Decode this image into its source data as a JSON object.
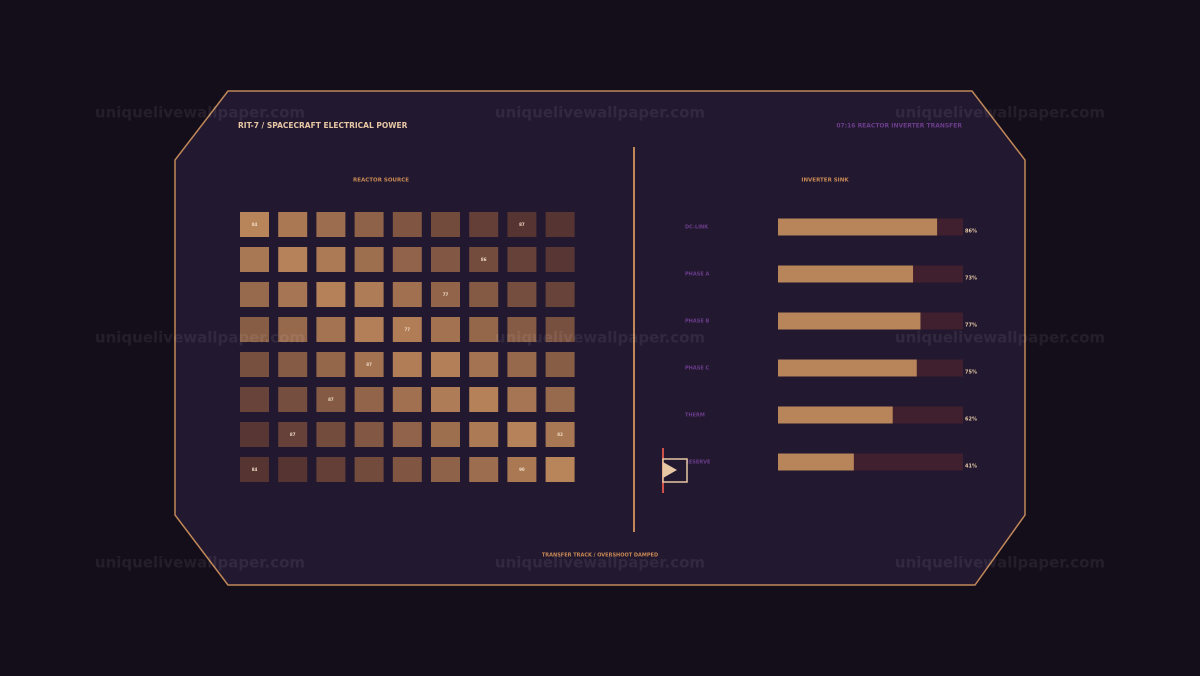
{
  "header": {
    "title": "RIT-7 / SPACECRAFT ELECTRICAL POWER",
    "status": "07:16 REACTOR INVERTER TRANSFER"
  },
  "watermark": "uniquelivewallpaper.com",
  "source": {
    "title": "REACTOR SOURCE",
    "cells": [
      [
        "84",
        null,
        null,
        null,
        null,
        null,
        null,
        "87",
        null
      ],
      [
        null,
        null,
        null,
        null,
        null,
        null,
        "86",
        null,
        null
      ],
      [
        null,
        null,
        null,
        null,
        null,
        "77",
        null,
        null,
        null
      ],
      [
        null,
        null,
        null,
        null,
        "77",
        null,
        null,
        null,
        null
      ],
      [
        null,
        null,
        null,
        "87",
        null,
        null,
        null,
        null,
        null
      ],
      [
        null,
        null,
        "87",
        null,
        null,
        null,
        null,
        null,
        null
      ],
      [
        null,
        "87",
        null,
        null,
        null,
        null,
        null,
        null,
        "82"
      ],
      [
        "84",
        null,
        null,
        null,
        null,
        null,
        null,
        "90",
        null
      ]
    ]
  },
  "sink": {
    "title": "INVERTER SINK",
    "xlim": [
      0,
      100
    ],
    "rows": [
      {
        "label": "DC-LINK",
        "value": 86,
        "value_label": "86%"
      },
      {
        "label": "PHASE A",
        "value": 73,
        "value_label": "73%"
      },
      {
        "label": "PHASE B",
        "value": 77,
        "value_label": "77%"
      },
      {
        "label": "PHASE C",
        "value": 75,
        "value_label": "75%"
      },
      {
        "label": "THERM",
        "value": 62,
        "value_label": "62%"
      },
      {
        "label": "RESERVE",
        "value": 41,
        "value_label": "41%"
      }
    ]
  },
  "footer": "TRANSFER TRACK / OVERSHOOT DAMPED"
}
